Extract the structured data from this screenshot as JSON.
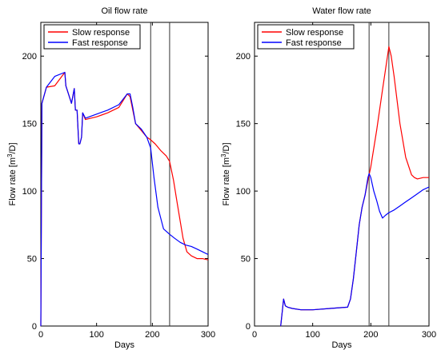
{
  "chart_data": [
    {
      "type": "line",
      "title": "Oil flow rate",
      "xlabel": "Days",
      "ylabel_main": "Flow rate [m",
      "ylabel_sup": "3",
      "ylabel_tail": "/D]",
      "xlim": [
        0,
        300
      ],
      "ylim": [
        0,
        225
      ],
      "xticks": [
        0,
        100,
        200,
        300
      ],
      "yticks": [
        0,
        50,
        100,
        150,
        200
      ],
      "vlines": [
        197,
        231
      ],
      "legend": {
        "position": "top-left",
        "entries": [
          "Slow response",
          "Fast response"
        ]
      },
      "series": [
        {
          "name": "Slow response",
          "color": "#ff0000",
          "x": [
            0,
            2,
            10,
            25,
            43,
            45,
            55,
            60,
            62,
            65,
            68,
            70,
            73,
            75,
            80,
            100,
            120,
            140,
            155,
            160,
            165,
            170,
            180,
            190,
            197,
            205,
            215,
            225,
            231,
            238,
            245,
            255,
            262,
            270,
            280,
            290,
            300
          ],
          "y": [
            0,
            165,
            177,
            178,
            188,
            178,
            165,
            176,
            160,
            160,
            135,
            135,
            140,
            158,
            153,
            155,
            158,
            162,
            172,
            170,
            160,
            150,
            145,
            140,
            138,
            135,
            130,
            126,
            122,
            108,
            90,
            65,
            55,
            52,
            50,
            50,
            49
          ]
        },
        {
          "name": "Fast response",
          "color": "#0000ff",
          "x": [
            0,
            2,
            10,
            25,
            43,
            45,
            55,
            60,
            62,
            65,
            68,
            70,
            73,
            75,
            80,
            100,
            120,
            140,
            155,
            160,
            165,
            170,
            180,
            190,
            197,
            203,
            210,
            220,
            231,
            240,
            250,
            260,
            270,
            280,
            290,
            300
          ],
          "y": [
            0,
            165,
            177,
            185,
            188,
            178,
            165,
            176,
            160,
            160,
            135,
            135,
            140,
            158,
            154,
            157,
            160,
            164,
            172,
            172,
            162,
            150,
            146,
            140,
            132,
            110,
            88,
            72,
            68,
            65,
            62,
            60,
            59,
            57,
            55,
            53
          ]
        }
      ]
    },
    {
      "type": "line",
      "title": "Water flow rate",
      "xlabel": "Days",
      "ylabel_main": "Flow rate [m",
      "ylabel_sup": "3",
      "ylabel_tail": "/D]",
      "xlim": [
        0,
        300
      ],
      "ylim": [
        0,
        225
      ],
      "xticks": [
        0,
        100,
        200,
        300
      ],
      "yticks": [
        0,
        50,
        100,
        150,
        200
      ],
      "vlines": [
        197,
        231
      ],
      "legend": {
        "position": "top-left",
        "entries": [
          "Slow response",
          "Fast response"
        ]
      },
      "series": [
        {
          "name": "Slow response",
          "color": "#ff0000",
          "x": [
            45,
            48,
            50,
            53,
            57,
            65,
            80,
            100,
            130,
            160,
            165,
            170,
            175,
            180,
            185,
            190,
            195,
            200,
            210,
            220,
            231,
            235,
            240,
            250,
            260,
            270,
            275,
            280,
            290,
            300
          ],
          "y": [
            0,
            12,
            20,
            15,
            14,
            13,
            12,
            12,
            13,
            14,
            20,
            35,
            55,
            75,
            88,
            97,
            108,
            118,
            145,
            175,
            207,
            200,
            185,
            150,
            125,
            112,
            110,
            109,
            110,
            110
          ]
        },
        {
          "name": "Fast response",
          "color": "#0000ff",
          "x": [
            45,
            48,
            50,
            53,
            57,
            65,
            80,
            100,
            130,
            160,
            165,
            170,
            175,
            180,
            185,
            190,
            195,
            197,
            200,
            205,
            210,
            215,
            220,
            225,
            231,
            240,
            250,
            260,
            270,
            280,
            290,
            300
          ],
          "y": [
            0,
            12,
            20,
            15,
            14,
            13,
            12,
            12,
            13,
            14,
            20,
            35,
            55,
            75,
            88,
            97,
            110,
            113,
            110,
            100,
            93,
            85,
            80,
            82,
            84,
            86,
            89,
            92,
            95,
            98,
            101,
            103
          ]
        }
      ]
    }
  ]
}
